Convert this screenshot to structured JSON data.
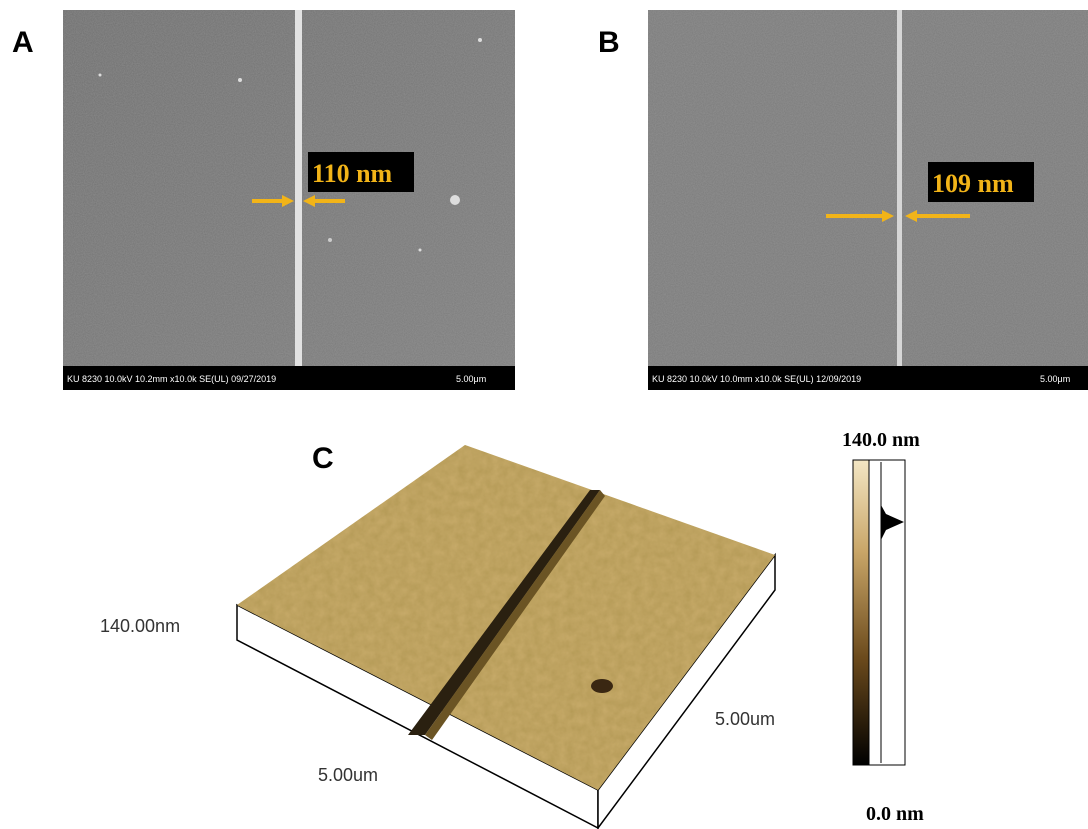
{
  "panels": {
    "a": {
      "label": "A",
      "measurement": "110 nm",
      "info": "KU 8230 10.0kV 10.2mm x10.0k SE(UL) 09/27/2019",
      "scale": "5.00μm"
    },
    "b": {
      "label": "B",
      "measurement": "109 nm",
      "info": "KU 8230 10.0kV 10.0mm x10.0k SE(UL) 12/09/2019",
      "scale": "5.00μm"
    },
    "c": {
      "label": "C",
      "height": "140.00nm",
      "x_length": "5.00um",
      "y_length": "5.00um",
      "colorbar_max": "140.0 nm",
      "colorbar_min": "0.0 nm"
    }
  }
}
